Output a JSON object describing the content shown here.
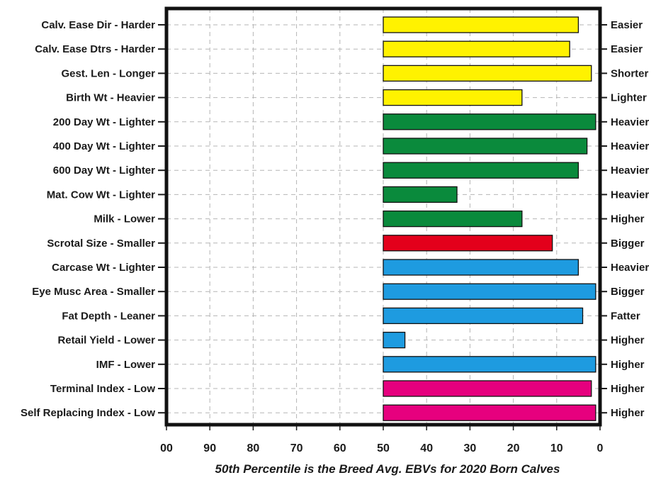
{
  "chart_data": {
    "type": "bar",
    "orientation": "horizontal",
    "x_axis": {
      "min": 0,
      "max": 100,
      "reversed": true,
      "tick_labels": [
        "00",
        "90",
        "80",
        "70",
        "60",
        "50",
        "40",
        "30",
        "20",
        "10",
        "0"
      ]
    },
    "bar_baseline": 50,
    "grid": "dashed",
    "footnote": "50th Percentile is the Breed Avg. EBVs for 2020 Born Calves",
    "traits": [
      {
        "left_label": "Calv. Ease Dir - Harder",
        "right_label": "Easier",
        "value": 5,
        "color": "#FFF200"
      },
      {
        "left_label": "Calv. Ease Dtrs - Harder",
        "right_label": "Easier",
        "value": 7,
        "color": "#FFF200"
      },
      {
        "left_label": "Gest. Len - Longer",
        "right_label": "Shorter",
        "value": 2,
        "color": "#FFF200"
      },
      {
        "left_label": "Birth Wt - Heavier",
        "right_label": "Lighter",
        "value": 18,
        "color": "#FFF200"
      },
      {
        "left_label": "200 Day Wt - Lighter",
        "right_label": "Heavier",
        "value": 1,
        "color": "#0A8A3C"
      },
      {
        "left_label": "400 Day Wt - Lighter",
        "right_label": "Heavier",
        "value": 3,
        "color": "#0A8A3C"
      },
      {
        "left_label": "600 Day Wt - Lighter",
        "right_label": "Heavier",
        "value": 5,
        "color": "#0A8A3C"
      },
      {
        "left_label": "Mat. Cow Wt - Lighter",
        "right_label": "Heavier",
        "value": 33,
        "color": "#0A8A3C"
      },
      {
        "left_label": "Milk - Lower",
        "right_label": "Higher",
        "value": 18,
        "color": "#0A8A3C"
      },
      {
        "left_label": "Scrotal Size - Smaller",
        "right_label": "Bigger",
        "value": 11,
        "color": "#E3001B"
      },
      {
        "left_label": "Carcase Wt - Lighter",
        "right_label": "Heavier",
        "value": 5,
        "color": "#1E9BE0"
      },
      {
        "left_label": "Eye Musc Area - Smaller",
        "right_label": "Bigger",
        "value": 1,
        "color": "#1E9BE0"
      },
      {
        "left_label": "Fat Depth - Leaner",
        "right_label": "Fatter",
        "value": 4,
        "color": "#1E9BE0"
      },
      {
        "left_label": "Retail Yield - Lower",
        "right_label": "Higher",
        "value": 45,
        "color": "#1E9BE0"
      },
      {
        "left_label": "IMF - Lower",
        "right_label": "Higher",
        "value": 1,
        "color": "#1E9BE0"
      },
      {
        "left_label": "Terminal Index - Low",
        "right_label": "Higher",
        "value": 2,
        "color": "#E6007E"
      },
      {
        "left_label": "Self Replacing Index - Low",
        "right_label": "Higher",
        "value": 1,
        "color": "#E6007E"
      }
    ]
  }
}
